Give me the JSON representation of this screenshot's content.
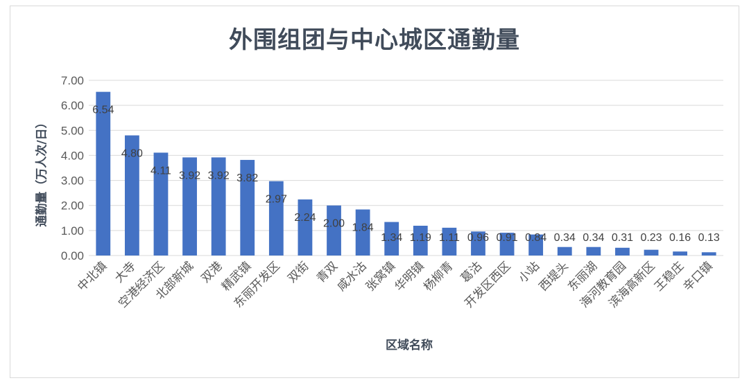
{
  "chart_data": {
    "type": "bar",
    "title": "外围组团与中心城区通勤量",
    "xlabel": "区域名称",
    "ylabel": "通勤量（万人次/日）",
    "ylim": [
      0,
      7
    ],
    "yticks": [
      "0.00",
      "1.00",
      "2.00",
      "3.00",
      "4.00",
      "5.00",
      "6.00",
      "7.00"
    ],
    "grid": true,
    "bar_color": "#4472c4",
    "categories": [
      "中北镇",
      "大寺",
      "空港经济区",
      "北部新城",
      "双港",
      "精武镇",
      "东丽开发区",
      "双街",
      "青双",
      "咸水沽",
      "张窝镇",
      "华明镇",
      "杨柳青",
      "葛沽",
      "开发区西区",
      "小站",
      "西堤头",
      "东丽湖",
      "海河教育园",
      "滨海高新区",
      "王稳庄",
      "辛口镇"
    ],
    "values": [
      6.54,
      4.8,
      4.11,
      3.92,
      3.92,
      3.82,
      2.97,
      2.24,
      2.0,
      1.84,
      1.34,
      1.19,
      1.11,
      0.96,
      0.91,
      0.84,
      0.34,
      0.34,
      0.31,
      0.23,
      0.16,
      0.13
    ],
    "data_labels": [
      "6.54",
      "4.80",
      "4.11",
      "3.92",
      "3.92",
      "3.82",
      "2.97",
      "2.24",
      "2.00",
      "1.84",
      "1.34",
      "1.19",
      "1.11",
      "0.96",
      "0.91",
      "0.84",
      "0.34",
      "0.34",
      "0.31",
      "0.23",
      "0.16",
      "0.13"
    ]
  }
}
